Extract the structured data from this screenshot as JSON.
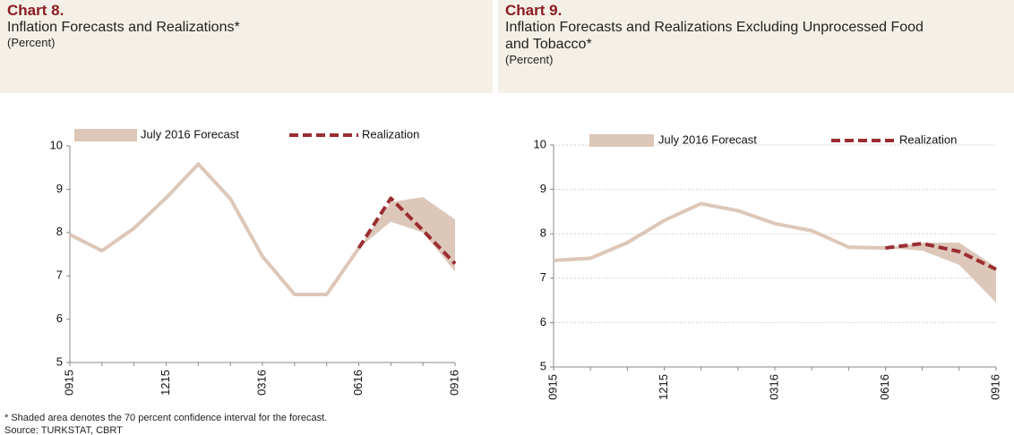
{
  "chart_data": [
    {
      "type": "line",
      "title": "Chart 8.",
      "subtitle": "Inflation Forecasts and Realizations*",
      "unit_label": "(Percent)",
      "categories": [
        "0915",
        null,
        null,
        "1215",
        null,
        null,
        "0316",
        null,
        null,
        "0616",
        null,
        null,
        "0916"
      ],
      "series": [
        {
          "name": "July 2016 Forecast",
          "color": "#dcc7b9",
          "values": [
            7.95,
            7.58,
            8.1,
            8.8,
            9.58,
            8.78,
            7.45,
            6.57,
            6.57,
            7.64,
            null,
            null,
            null
          ],
          "band_lower": [
            null,
            null,
            null,
            null,
            null,
            null,
            null,
            null,
            null,
            7.64,
            8.25,
            8.0,
            7.1
          ],
          "band_upper": [
            null,
            null,
            null,
            null,
            null,
            null,
            null,
            null,
            null,
            7.64,
            8.7,
            8.82,
            8.3
          ]
        },
        {
          "name": "Realization",
          "color": "#9b2d30",
          "values": [
            null,
            null,
            null,
            null,
            null,
            null,
            null,
            null,
            null,
            7.64,
            8.79,
            8.05,
            7.28
          ]
        }
      ],
      "ylim": [
        5,
        10
      ],
      "yticks": [
        5,
        6,
        7,
        8,
        9,
        10
      ],
      "grid": false,
      "notes": [
        "* Shaded area denotes the 70 percent confidence interval for the forecast.",
        "Source: TURKSTAT, CBRT"
      ]
    },
    {
      "type": "line",
      "title": "Chart 9.",
      "subtitle": "Inflation Forecasts and Realizations Excluding Unprocessed Food and Tobacco*",
      "unit_label": "(Percent)",
      "categories": [
        "0915",
        null,
        null,
        "1215",
        null,
        null,
        "0316",
        null,
        null,
        "0616",
        null,
        null,
        "0916"
      ],
      "series": [
        {
          "name": "July 2016 Forecast",
          "color": "#dcc7b9",
          "values": [
            7.4,
            7.45,
            7.8,
            8.3,
            8.68,
            8.52,
            8.23,
            8.07,
            7.7,
            7.68,
            null,
            null,
            null
          ],
          "band_lower": [
            null,
            null,
            null,
            null,
            null,
            null,
            null,
            null,
            null,
            7.68,
            7.62,
            7.3,
            6.45
          ],
          "band_upper": [
            null,
            null,
            null,
            null,
            null,
            null,
            null,
            null,
            null,
            7.68,
            7.8,
            7.8,
            7.25
          ]
        },
        {
          "name": "Realization",
          "color": "#9b2d30",
          "values": [
            null,
            null,
            null,
            null,
            null,
            null,
            null,
            null,
            null,
            7.68,
            7.78,
            7.6,
            7.2
          ]
        }
      ],
      "ylim": [
        5,
        10
      ],
      "yticks": [
        5,
        6,
        7,
        8,
        9,
        10
      ],
      "grid": true
    }
  ]
}
